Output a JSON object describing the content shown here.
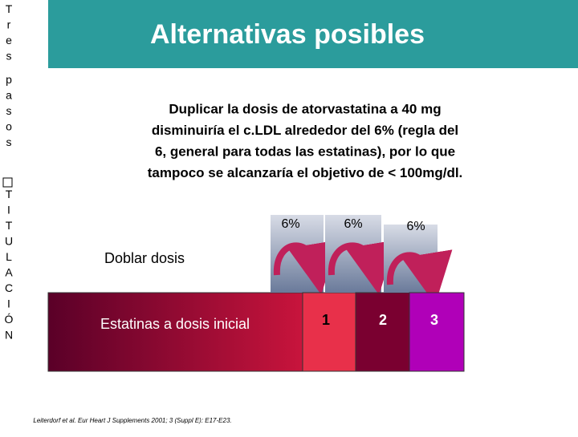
{
  "sidebar": {
    "lines": [
      "Tres",
      "pasos",
      "TITULACIÓN"
    ]
  },
  "header": {
    "title": "Alternativas posibles"
  },
  "body": {
    "lines": [
      "Duplicar la dosis de atorvastatina a 40 mg",
      "disminuiría el c.LDL alrededor del 6% (regla del",
      "6, general para todas las estatinas), por lo que",
      "tampoco se alcanzaría el objetivo de < 100mg/dl."
    ]
  },
  "diagram": {
    "base_label": "Estatinas a dosis inicial",
    "double_label": "Doblar dosis",
    "steps": [
      {
        "percent": "6%",
        "label": "1"
      },
      {
        "percent": "6%",
        "label": "2"
      },
      {
        "percent": "6%",
        "label": "3"
      }
    ]
  },
  "citation": "Leiterdorf et al. Eur Heart J Supplements 2001; 3 (Suppl E): E17-E23."
}
